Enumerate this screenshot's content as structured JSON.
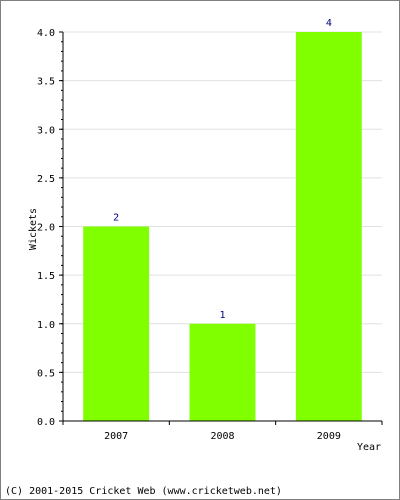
{
  "chart_data": {
    "type": "bar",
    "categories": [
      "2007",
      "2008",
      "2009"
    ],
    "values": [
      2,
      1,
      4
    ],
    "data_labels": [
      "2",
      "1",
      "4"
    ],
    "xlabel": "Year",
    "ylabel": "Wickets",
    "ylim": [
      0,
      4
    ],
    "y_ticks": [
      "0.0",
      "0.5",
      "1.0",
      "1.5",
      "2.0",
      "2.5",
      "3.0",
      "3.5",
      "4.0"
    ],
    "grid": true,
    "legend": "none",
    "bar_color": "#80ff00",
    "label_color": "#000080"
  },
  "footer": {
    "text": "(C) 2001-2015 Cricket Web (www.cricketweb.net)"
  }
}
